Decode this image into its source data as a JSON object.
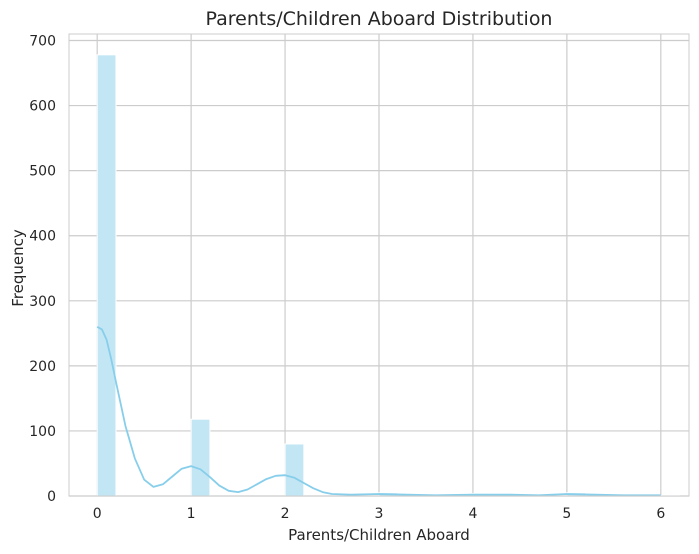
{
  "chart_data": {
    "type": "bar",
    "title": "Parents/Children Aboard Distribution",
    "xlabel": "Parents/Children Aboard",
    "ylabel": "Frequency",
    "xlim": [
      -0.3,
      6.3
    ],
    "ylim": [
      0,
      710
    ],
    "x_ticks": [
      0,
      1,
      2,
      3,
      4,
      5,
      6
    ],
    "y_ticks": [
      0,
      100,
      200,
      300,
      400,
      500,
      600,
      700
    ],
    "grid": true,
    "bin_width": 0.2,
    "bars": [
      {
        "x": 0,
        "value": 678
      },
      {
        "x": 1,
        "value": 118
      },
      {
        "x": 2,
        "value": 80
      },
      {
        "x": 3,
        "value": 5
      },
      {
        "x": 4,
        "value": 4
      },
      {
        "x": 5,
        "value": 5
      },
      {
        "x": 6,
        "value": 1
      }
    ],
    "kde_line": {
      "x": [
        0,
        0.05,
        0.1,
        0.15,
        0.2,
        0.3,
        0.4,
        0.5,
        0.6,
        0.7,
        0.8,
        0.9,
        1.0,
        1.1,
        1.2,
        1.3,
        1.4,
        1.5,
        1.6,
        1.7,
        1.8,
        1.9,
        2.0,
        2.1,
        2.2,
        2.3,
        2.4,
        2.5,
        2.7,
        3.0,
        3.3,
        3.6,
        4.0,
        4.4,
        4.7,
        5.0,
        5.3,
        5.6,
        6.0
      ],
      "y": [
        260,
        256,
        240,
        210,
        175,
        108,
        58,
        25,
        14,
        18,
        30,
        42,
        46,
        41,
        29,
        16,
        8,
        6,
        10,
        18,
        26,
        31,
        32,
        28,
        20,
        12,
        6,
        3,
        2,
        3,
        2,
        1,
        2,
        2,
        1,
        3,
        2,
        1,
        1
      ]
    },
    "colors": {
      "bar_fill": "#c3e6f4",
      "bar_edge": "#ffffff",
      "kde_line": "#87ceeb",
      "grid": "#cccccc",
      "axis_text": "#262626"
    }
  }
}
